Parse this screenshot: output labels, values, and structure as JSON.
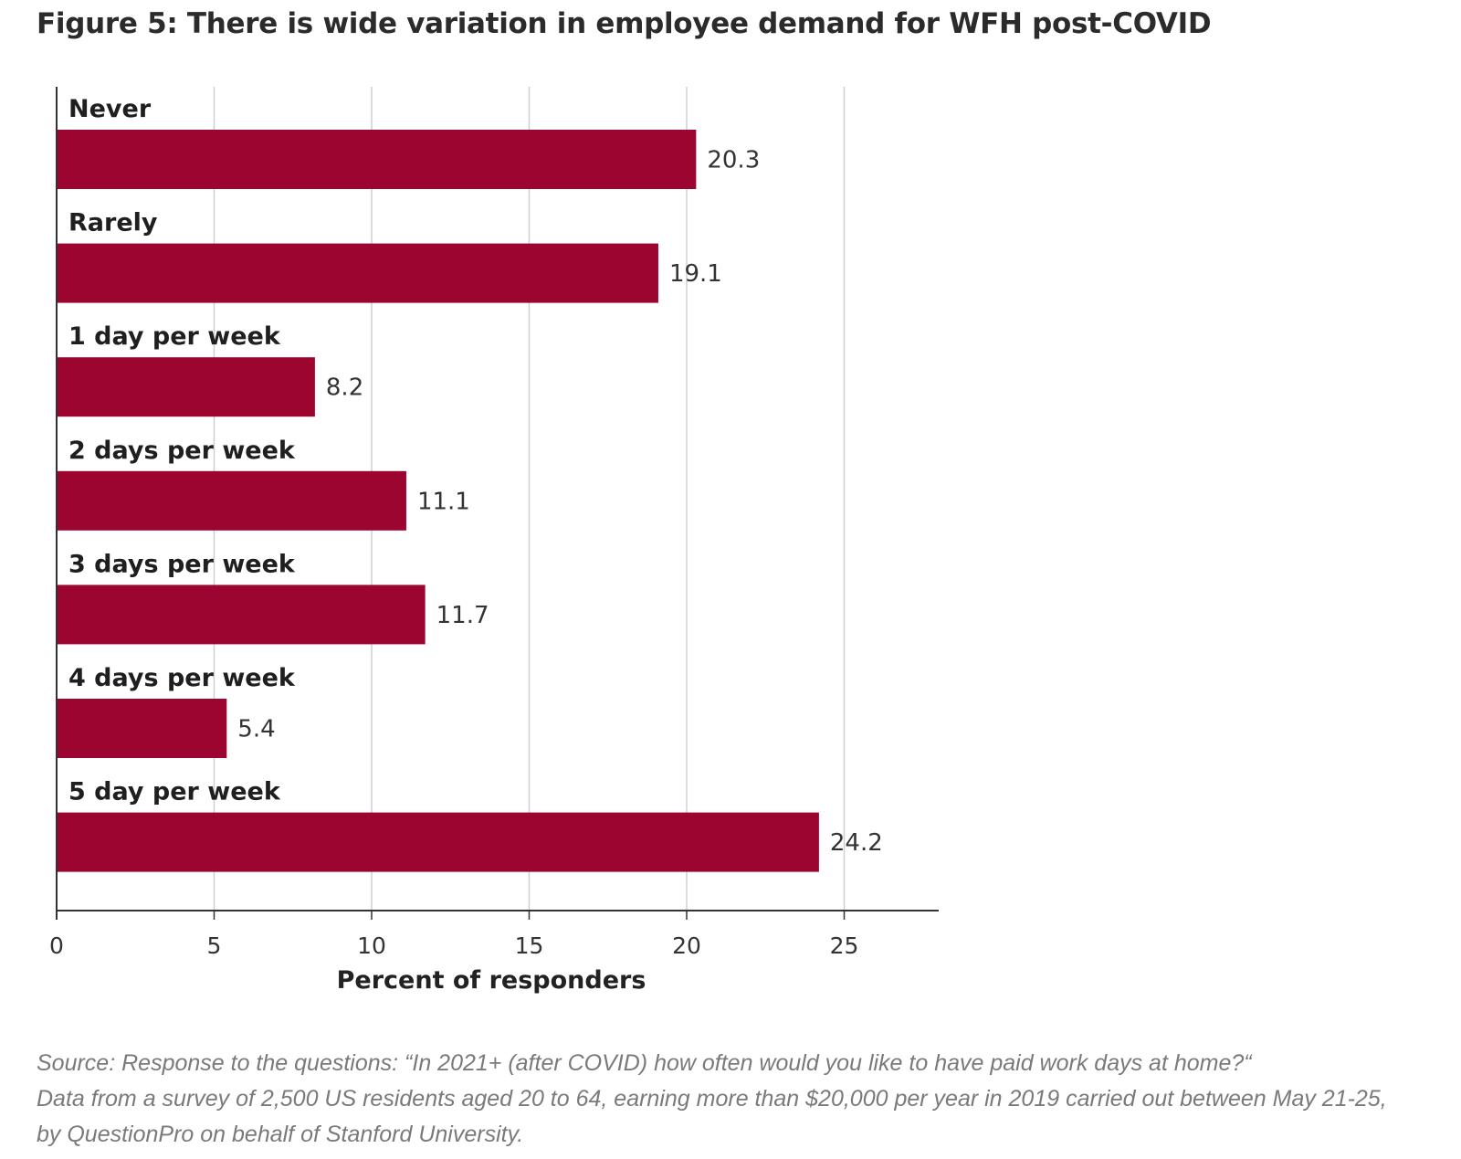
{
  "title": "Figure 5: There is wide variation in employee demand for WFH post-COVID",
  "chart_data": {
    "type": "bar",
    "orientation": "horizontal",
    "categories": [
      "Never",
      "Rarely",
      "1 day per week",
      "2 days per week",
      "3 days per week",
      "4 days per week",
      "5 day per week"
    ],
    "values": [
      20.3,
      19.1,
      8.2,
      11.1,
      11.7,
      5.4,
      24.2
    ],
    "value_labels": [
      "20.3",
      "19.1",
      "8.2",
      "11.1",
      "11.7",
      "5.4",
      "24.2"
    ],
    "xlabel": "Percent of responders",
    "ylabel": "",
    "xlim": [
      0,
      28
    ],
    "xticks": [
      0,
      5,
      10,
      15,
      20,
      25
    ],
    "xtick_labels": [
      "0",
      "5",
      "10",
      "15",
      "20",
      "25"
    ],
    "grid": "vertical",
    "legend": "none",
    "bar_color": "#9c0530"
  },
  "source": {
    "lead": "Source:",
    "line1": " Response to the questions: “In 2021+ (after COVID) how often would you like to have paid work days at home?“",
    "line2": "Data from a survey of 2,500 US residents aged 20 to 64, earning more than $20,000 per year in 2019 carried out between May 21-25,",
    "line3": "by QuestionPro on behalf of Stanford University."
  }
}
